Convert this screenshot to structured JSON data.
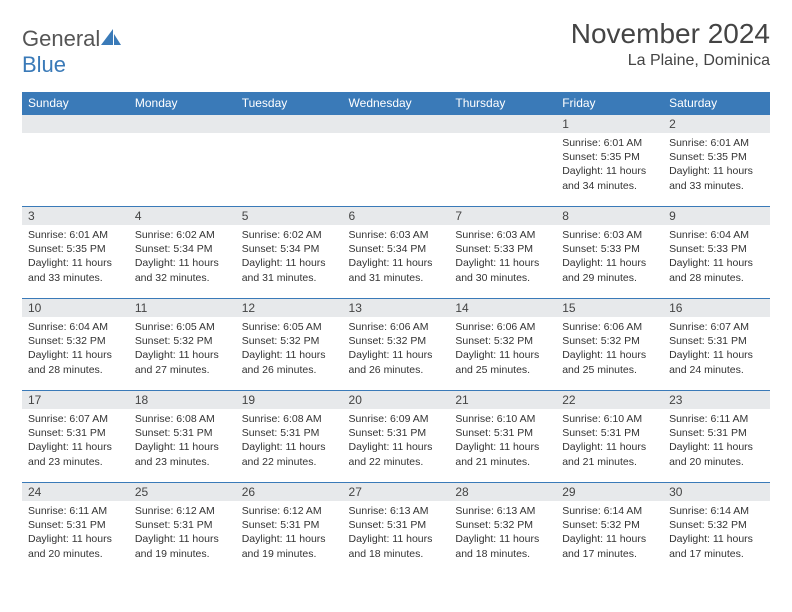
{
  "logo": {
    "text_general": "General",
    "text_blue": "Blue"
  },
  "header": {
    "month": "November 2024",
    "location": "La Plaine, Dominica"
  },
  "colors": {
    "header_bg": "#3a7ab8",
    "header_fg": "#ffffff",
    "daynum_bg": "#e7e9eb",
    "border": "#3a7ab8",
    "text": "#333333"
  },
  "day_labels": [
    "Sunday",
    "Monday",
    "Tuesday",
    "Wednesday",
    "Thursday",
    "Friday",
    "Saturday"
  ],
  "weeks": [
    [
      null,
      null,
      null,
      null,
      null,
      {
        "n": "1",
        "sunrise": "Sunrise: 6:01 AM",
        "sunset": "Sunset: 5:35 PM",
        "daylight": "Daylight: 11 hours and 34 minutes."
      },
      {
        "n": "2",
        "sunrise": "Sunrise: 6:01 AM",
        "sunset": "Sunset: 5:35 PM",
        "daylight": "Daylight: 11 hours and 33 minutes."
      }
    ],
    [
      {
        "n": "3",
        "sunrise": "Sunrise: 6:01 AM",
        "sunset": "Sunset: 5:35 PM",
        "daylight": "Daylight: 11 hours and 33 minutes."
      },
      {
        "n": "4",
        "sunrise": "Sunrise: 6:02 AM",
        "sunset": "Sunset: 5:34 PM",
        "daylight": "Daylight: 11 hours and 32 minutes."
      },
      {
        "n": "5",
        "sunrise": "Sunrise: 6:02 AM",
        "sunset": "Sunset: 5:34 PM",
        "daylight": "Daylight: 11 hours and 31 minutes."
      },
      {
        "n": "6",
        "sunrise": "Sunrise: 6:03 AM",
        "sunset": "Sunset: 5:34 PM",
        "daylight": "Daylight: 11 hours and 31 minutes."
      },
      {
        "n": "7",
        "sunrise": "Sunrise: 6:03 AM",
        "sunset": "Sunset: 5:33 PM",
        "daylight": "Daylight: 11 hours and 30 minutes."
      },
      {
        "n": "8",
        "sunrise": "Sunrise: 6:03 AM",
        "sunset": "Sunset: 5:33 PM",
        "daylight": "Daylight: 11 hours and 29 minutes."
      },
      {
        "n": "9",
        "sunrise": "Sunrise: 6:04 AM",
        "sunset": "Sunset: 5:33 PM",
        "daylight": "Daylight: 11 hours and 28 minutes."
      }
    ],
    [
      {
        "n": "10",
        "sunrise": "Sunrise: 6:04 AM",
        "sunset": "Sunset: 5:32 PM",
        "daylight": "Daylight: 11 hours and 28 minutes."
      },
      {
        "n": "11",
        "sunrise": "Sunrise: 6:05 AM",
        "sunset": "Sunset: 5:32 PM",
        "daylight": "Daylight: 11 hours and 27 minutes."
      },
      {
        "n": "12",
        "sunrise": "Sunrise: 6:05 AM",
        "sunset": "Sunset: 5:32 PM",
        "daylight": "Daylight: 11 hours and 26 minutes."
      },
      {
        "n": "13",
        "sunrise": "Sunrise: 6:06 AM",
        "sunset": "Sunset: 5:32 PM",
        "daylight": "Daylight: 11 hours and 26 minutes."
      },
      {
        "n": "14",
        "sunrise": "Sunrise: 6:06 AM",
        "sunset": "Sunset: 5:32 PM",
        "daylight": "Daylight: 11 hours and 25 minutes."
      },
      {
        "n": "15",
        "sunrise": "Sunrise: 6:06 AM",
        "sunset": "Sunset: 5:32 PM",
        "daylight": "Daylight: 11 hours and 25 minutes."
      },
      {
        "n": "16",
        "sunrise": "Sunrise: 6:07 AM",
        "sunset": "Sunset: 5:31 PM",
        "daylight": "Daylight: 11 hours and 24 minutes."
      }
    ],
    [
      {
        "n": "17",
        "sunrise": "Sunrise: 6:07 AM",
        "sunset": "Sunset: 5:31 PM",
        "daylight": "Daylight: 11 hours and 23 minutes."
      },
      {
        "n": "18",
        "sunrise": "Sunrise: 6:08 AM",
        "sunset": "Sunset: 5:31 PM",
        "daylight": "Daylight: 11 hours and 23 minutes."
      },
      {
        "n": "19",
        "sunrise": "Sunrise: 6:08 AM",
        "sunset": "Sunset: 5:31 PM",
        "daylight": "Daylight: 11 hours and 22 minutes."
      },
      {
        "n": "20",
        "sunrise": "Sunrise: 6:09 AM",
        "sunset": "Sunset: 5:31 PM",
        "daylight": "Daylight: 11 hours and 22 minutes."
      },
      {
        "n": "21",
        "sunrise": "Sunrise: 6:10 AM",
        "sunset": "Sunset: 5:31 PM",
        "daylight": "Daylight: 11 hours and 21 minutes."
      },
      {
        "n": "22",
        "sunrise": "Sunrise: 6:10 AM",
        "sunset": "Sunset: 5:31 PM",
        "daylight": "Daylight: 11 hours and 21 minutes."
      },
      {
        "n": "23",
        "sunrise": "Sunrise: 6:11 AM",
        "sunset": "Sunset: 5:31 PM",
        "daylight": "Daylight: 11 hours and 20 minutes."
      }
    ],
    [
      {
        "n": "24",
        "sunrise": "Sunrise: 6:11 AM",
        "sunset": "Sunset: 5:31 PM",
        "daylight": "Daylight: 11 hours and 20 minutes."
      },
      {
        "n": "25",
        "sunrise": "Sunrise: 6:12 AM",
        "sunset": "Sunset: 5:31 PM",
        "daylight": "Daylight: 11 hours and 19 minutes."
      },
      {
        "n": "26",
        "sunrise": "Sunrise: 6:12 AM",
        "sunset": "Sunset: 5:31 PM",
        "daylight": "Daylight: 11 hours and 19 minutes."
      },
      {
        "n": "27",
        "sunrise": "Sunrise: 6:13 AM",
        "sunset": "Sunset: 5:31 PM",
        "daylight": "Daylight: 11 hours and 18 minutes."
      },
      {
        "n": "28",
        "sunrise": "Sunrise: 6:13 AM",
        "sunset": "Sunset: 5:32 PM",
        "daylight": "Daylight: 11 hours and 18 minutes."
      },
      {
        "n": "29",
        "sunrise": "Sunrise: 6:14 AM",
        "sunset": "Sunset: 5:32 PM",
        "daylight": "Daylight: 11 hours and 17 minutes."
      },
      {
        "n": "30",
        "sunrise": "Sunrise: 6:14 AM",
        "sunset": "Sunset: 5:32 PM",
        "daylight": "Daylight: 11 hours and 17 minutes."
      }
    ]
  ]
}
